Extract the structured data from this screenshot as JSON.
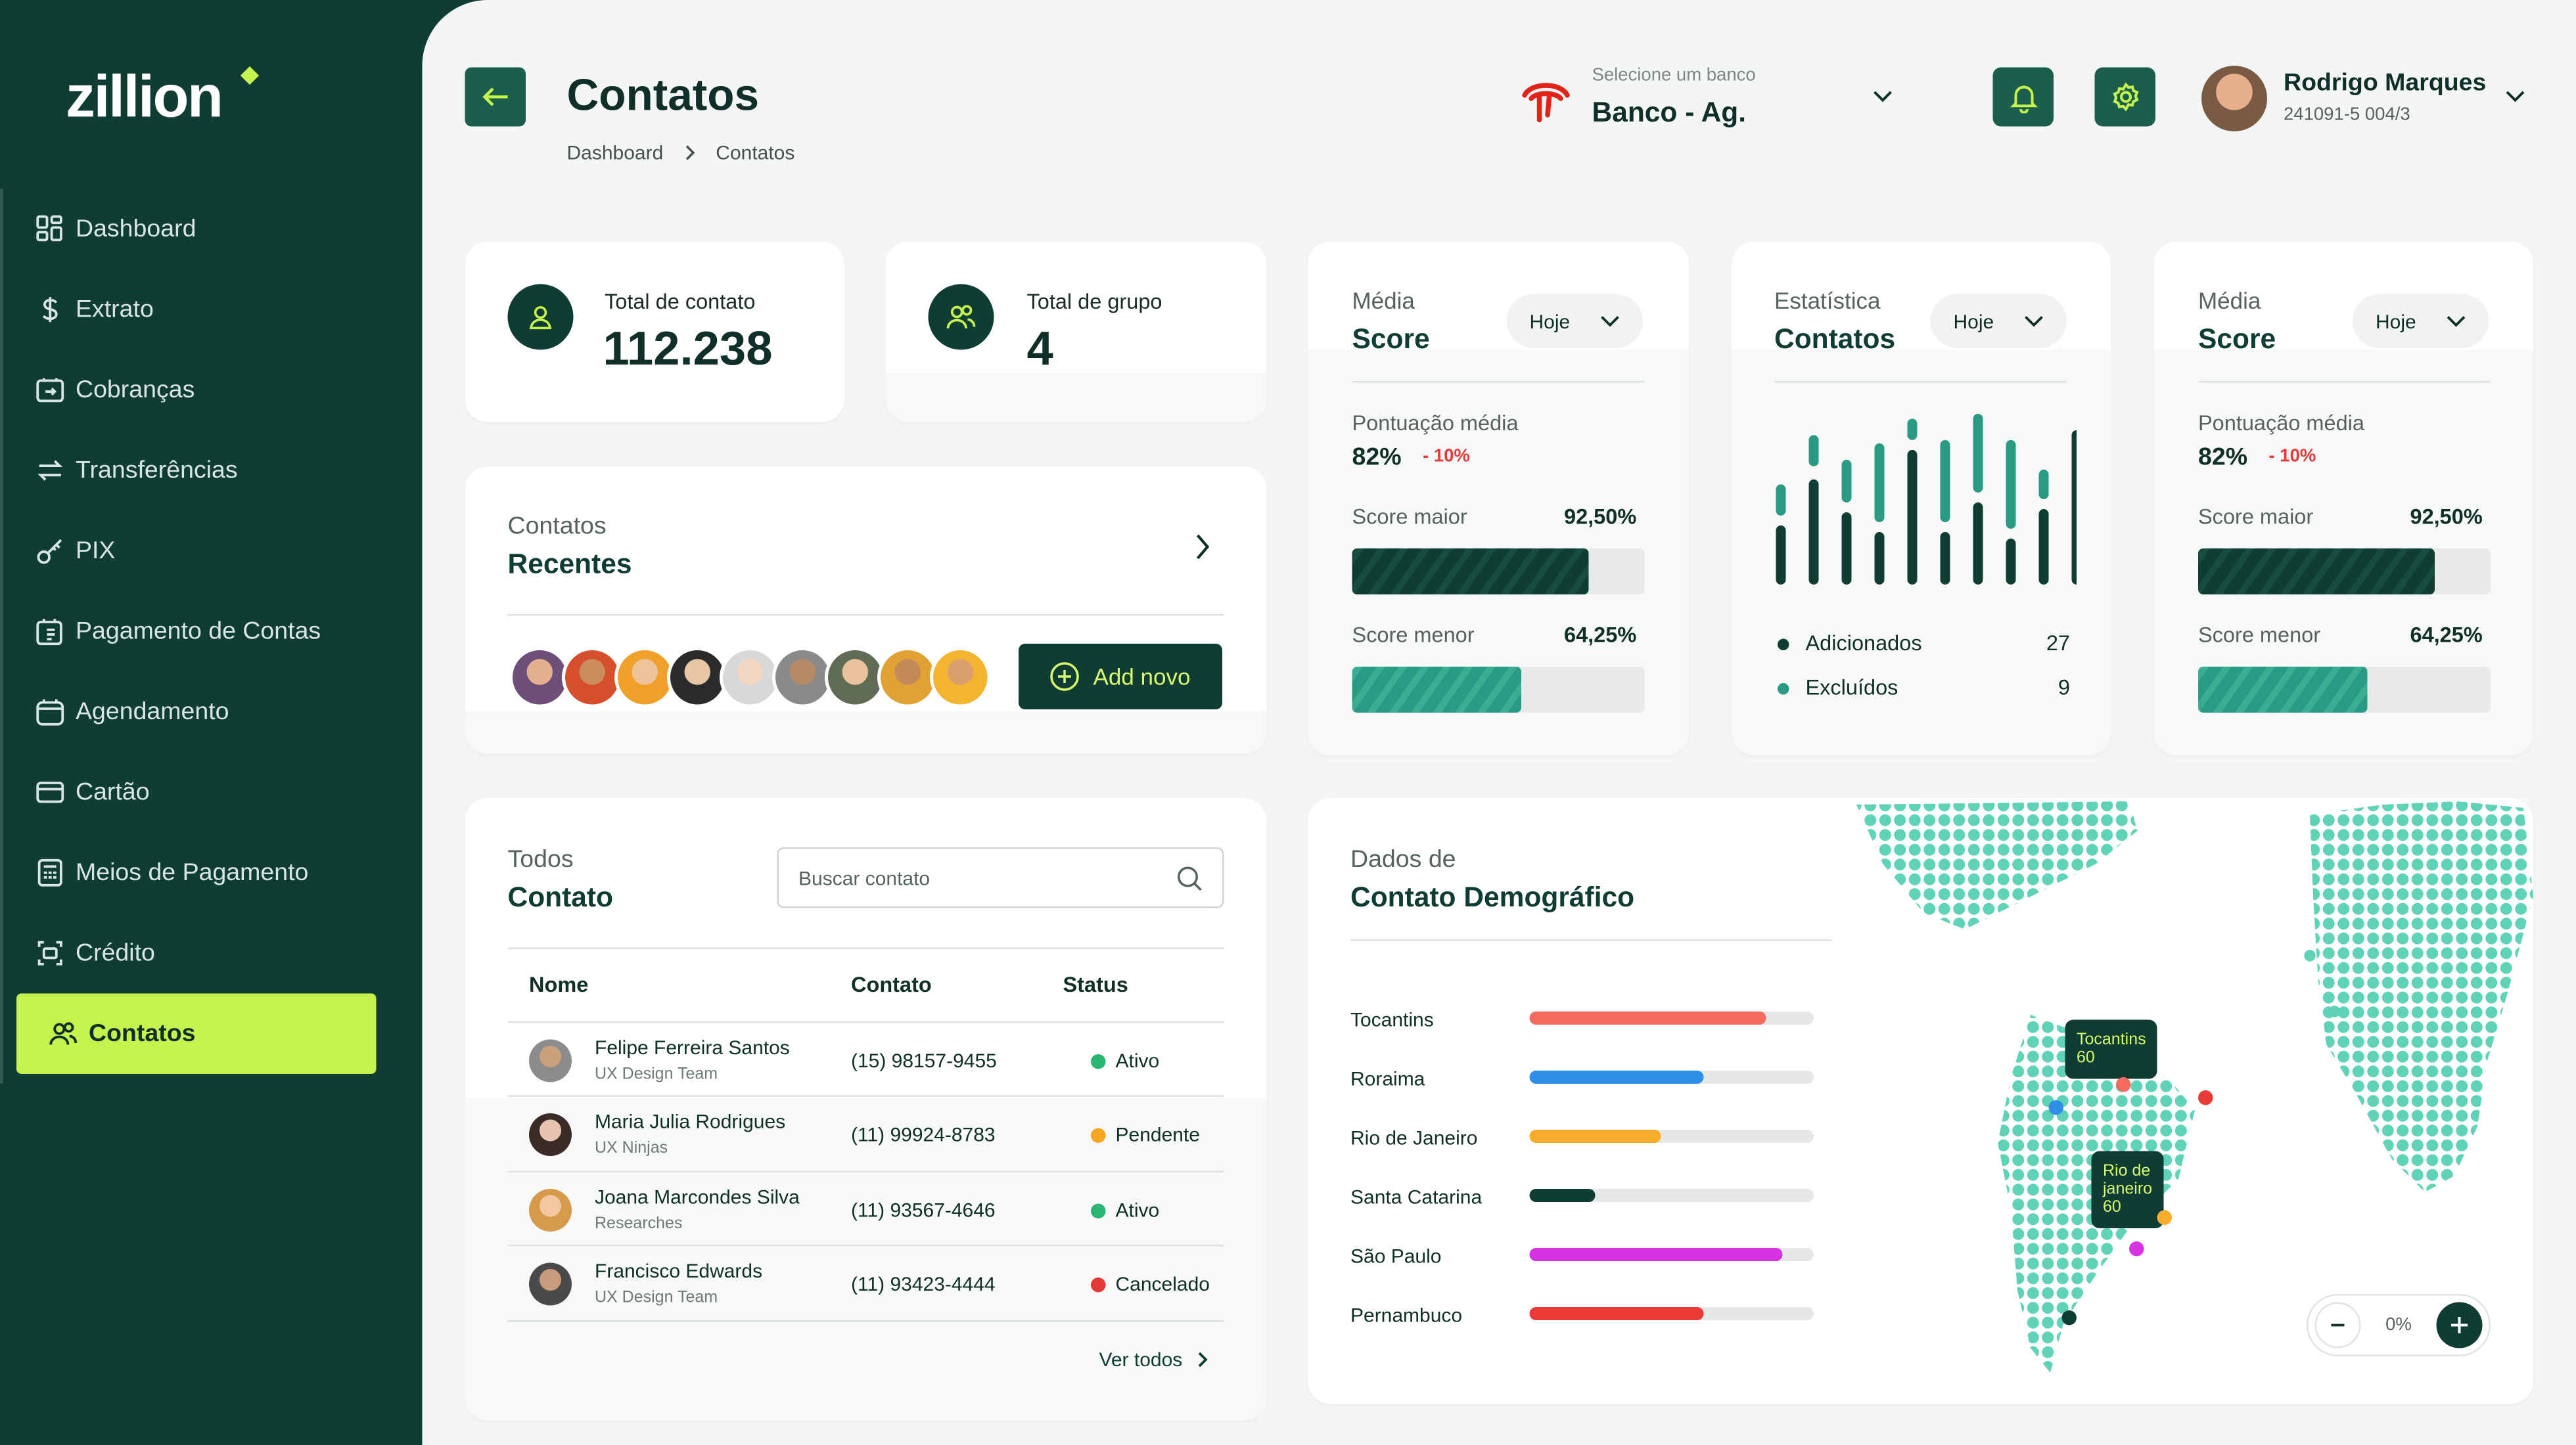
{
  "brand": {
    "logo_text": "zillion",
    "accent": "#c6f24e",
    "dark": "#0f3d33"
  },
  "sidebar": {
    "items": [
      {
        "label": "Dashboard",
        "icon": "grid-icon"
      },
      {
        "label": "Extrato",
        "icon": "dollar-icon"
      },
      {
        "label": "Cobranças",
        "icon": "invoice-icon"
      },
      {
        "label": "Transferências",
        "icon": "transfer-icon"
      },
      {
        "label": "PIX",
        "icon": "key-icon"
      },
      {
        "label": "Pagamento de Contas",
        "icon": "receipt-icon"
      },
      {
        "label": "Agendamento",
        "icon": "calendar-icon"
      },
      {
        "label": "Cartão",
        "icon": "card-icon"
      },
      {
        "label": "Meios de Pagamento",
        "icon": "pos-icon"
      },
      {
        "label": "Crédito",
        "icon": "credit-icon"
      },
      {
        "label": "Contatos",
        "icon": "users-icon",
        "active": true
      }
    ]
  },
  "header": {
    "title": "Contatos",
    "breadcrumb": [
      "Dashboard",
      "Contatos"
    ],
    "bank_small": "Selecione um banco",
    "bank_name": "Banco - Ag.",
    "user_name": "Rodrigo Marques",
    "user_sub": "241091-5  004/3"
  },
  "stats": {
    "total_contacts": {
      "label": "Total de contato",
      "value": "112.238"
    },
    "total_groups": {
      "label": "Total de grupo",
      "value": "4"
    }
  },
  "recent": {
    "title_a": "Contatos",
    "title_b": "Recentes",
    "add_label": "Add novo"
  },
  "score1": {
    "title_a": "Média",
    "title_b": "Score",
    "period": "Hoje",
    "avg_label": "Pontuação média",
    "avg_value": "82%",
    "avg_delta": "- 10%",
    "max_label": "Score maior",
    "max_value": "92,50%",
    "max_fraction": 0.81,
    "min_label": "Score menor",
    "min_value": "64,25%",
    "min_fraction": 0.58
  },
  "stats_card": {
    "title_a": "Estatística",
    "title_b": "Contatos",
    "period": "Hoje",
    "legend": [
      {
        "label": "Adicionados",
        "value": "27",
        "color": "#0f3d33"
      },
      {
        "label": "Excluídos",
        "value": "9",
        "color": "#2a9b82"
      }
    ]
  },
  "score2": {
    "title_a": "Média",
    "title_b": "Score",
    "period": "Hoje",
    "avg_label": "Pontuação média",
    "avg_value": "82%",
    "avg_delta": "- 10%",
    "max_label": "Score maior",
    "max_value": "92,50%",
    "max_fraction": 0.81,
    "min_label": "Score menor",
    "min_value": "64,25%",
    "min_fraction": 0.58
  },
  "contacts": {
    "title_a": "Todos",
    "title_b": "Contato",
    "search_placeholder": "Buscar contato",
    "columns": [
      "Nome",
      "Contato",
      "Status"
    ],
    "rows": [
      {
        "name": "Felipe Ferreira Santos",
        "team": "UX Design Team",
        "phone": "(15) 98157-9455",
        "status": "Ativo",
        "status_color": "#2bb673"
      },
      {
        "name": "Maria Julia Rodrigues",
        "team": "UX Ninjas",
        "phone": "(11) 99924-8783",
        "status": "Pendente",
        "status_color": "#f5a623"
      },
      {
        "name": "Joana Marcondes Silva",
        "team": "Researches",
        "phone": "(11) 93567-4646",
        "status": "Ativo",
        "status_color": "#2bb673"
      },
      {
        "name": "Francisco Edwards",
        "team": "UX Design Team",
        "phone": "(11) 93423-4444",
        "status": "Cancelado",
        "status_color": "#e53935"
      }
    ],
    "see_all": "Ver todos"
  },
  "demographic": {
    "title_a": "Dados de",
    "title_b": "Contato Demográfico",
    "states": [
      {
        "label": "Tocantins",
        "fraction": 0.83,
        "color": "#f46b5f"
      },
      {
        "label": "Roraima",
        "fraction": 0.61,
        "color": "#2f8ee8"
      },
      {
        "label": "Rio de Janeiro",
        "fraction": 0.46,
        "color": "#f7ad2b"
      },
      {
        "label": "Santa Catarina",
        "fraction": 0.23,
        "color": "#0f3d33"
      },
      {
        "label": "São Paulo",
        "fraction": 0.89,
        "color": "#d632e3"
      },
      {
        "label": "Pernambuco",
        "fraction": 0.61,
        "color": "#ea3b37"
      }
    ],
    "tooltip_1": "Tocantins 60",
    "tooltip_2": "Rio de janeiro 60",
    "zoom_value": "0%"
  }
}
